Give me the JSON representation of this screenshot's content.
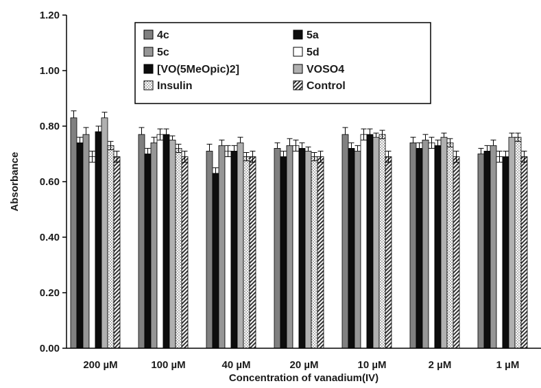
{
  "chart_data": {
    "type": "bar",
    "title": "",
    "xlabel": "Concentration of vanadium(IV)",
    "ylabel": "Absorbance",
    "ylim": [
      0,
      1.2
    ],
    "yticks": [
      "0.00",
      "0.20",
      "0.40",
      "0.60",
      "0.80",
      "1.00",
      "1.20"
    ],
    "grid": false,
    "legend_position": "top-center",
    "error_bars": true,
    "categories": [
      "200 µM",
      "100 µM",
      "40 µM",
      "20 µM",
      "10 µM",
      "2 µM",
      "1 µM"
    ],
    "series": [
      {
        "name": "4c",
        "fill": "#808080",
        "pattern": "solid",
        "values": [
          0.83,
          0.77,
          0.71,
          0.72,
          0.77,
          0.74,
          0.7
        ],
        "errors": [
          0.025,
          0.025,
          0.025,
          0.02,
          0.025,
          0.02,
          0.02
        ]
      },
      {
        "name": "5a",
        "fill": "#0d0d0d",
        "pattern": "solid",
        "values": [
          0.74,
          0.7,
          0.63,
          0.69,
          0.72,
          0.72,
          0.71
        ],
        "errors": [
          0.02,
          0.02,
          0.02,
          0.02,
          0.02,
          0.02,
          0.02
        ]
      },
      {
        "name": "5c",
        "fill": "#969696",
        "pattern": "solid",
        "values": [
          0.77,
          0.74,
          0.73,
          0.73,
          0.71,
          0.75,
          0.73
        ],
        "errors": [
          0.025,
          0.02,
          0.02,
          0.025,
          0.02,
          0.02,
          0.02
        ]
      },
      {
        "name": "5d",
        "fill": "#ffffff",
        "pattern": "solid",
        "values": [
          0.69,
          0.77,
          0.71,
          0.73,
          0.77,
          0.74,
          0.69
        ],
        "errors": [
          0.02,
          0.02,
          0.02,
          0.02,
          0.02,
          0.02,
          0.02
        ]
      },
      {
        "name": "[VO(5MeOpic)2]",
        "fill": "#0d0d0d",
        "pattern": "solid",
        "values": [
          0.78,
          0.77,
          0.71,
          0.72,
          0.77,
          0.73,
          0.69
        ],
        "errors": [
          0.02,
          0.02,
          0.02,
          0.02,
          0.02,
          0.02,
          0.02
        ]
      },
      {
        "name": "VOSO4",
        "fill": "#b0b0b0",
        "pattern": "solid",
        "values": [
          0.83,
          0.75,
          0.74,
          0.71,
          0.76,
          0.76,
          0.76
        ],
        "errors": [
          0.02,
          0.015,
          0.02,
          0.015,
          0.015,
          0.015,
          0.015
        ]
      },
      {
        "name": "Insulin",
        "fill": "#ffffff",
        "pattern": "dots",
        "values": [
          0.73,
          0.72,
          0.69,
          0.69,
          0.77,
          0.74,
          0.76
        ],
        "errors": [
          0.015,
          0.015,
          0.015,
          0.015,
          0.015,
          0.015,
          0.015
        ]
      },
      {
        "name": "Control",
        "fill": "#ffffff",
        "pattern": "hatch",
        "values": [
          0.69,
          0.69,
          0.69,
          0.69,
          0.69,
          0.69,
          0.69
        ],
        "errors": [
          0.02,
          0.02,
          0.02,
          0.02,
          0.02,
          0.02,
          0.02
        ]
      }
    ]
  }
}
